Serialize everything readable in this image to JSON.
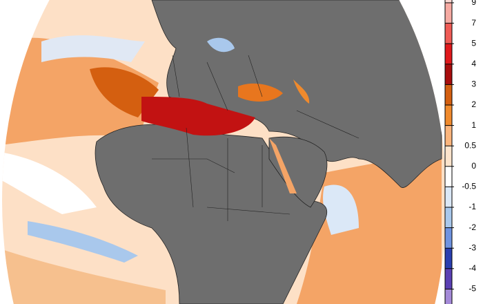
{
  "colorbar": {
    "ticks": [
      9,
      7,
      5,
      4,
      3,
      2,
      1,
      0.5,
      0,
      -0.5,
      -1,
      -2,
      -3,
      -4,
      -5
    ],
    "colors": [
      "#fbd8d2",
      "#f6aaa2",
      "#ef5b55",
      "#e0191c",
      "#a80d0d",
      "#d45f10",
      "#f08a2c",
      "#fbb57c",
      "#fde4cc",
      "#ffffff",
      "#dbe8f7",
      "#a9c8ec",
      "#6f93e0",
      "#2a3fb0",
      "#5a40b4",
      "#a48ad8"
    ]
  }
}
